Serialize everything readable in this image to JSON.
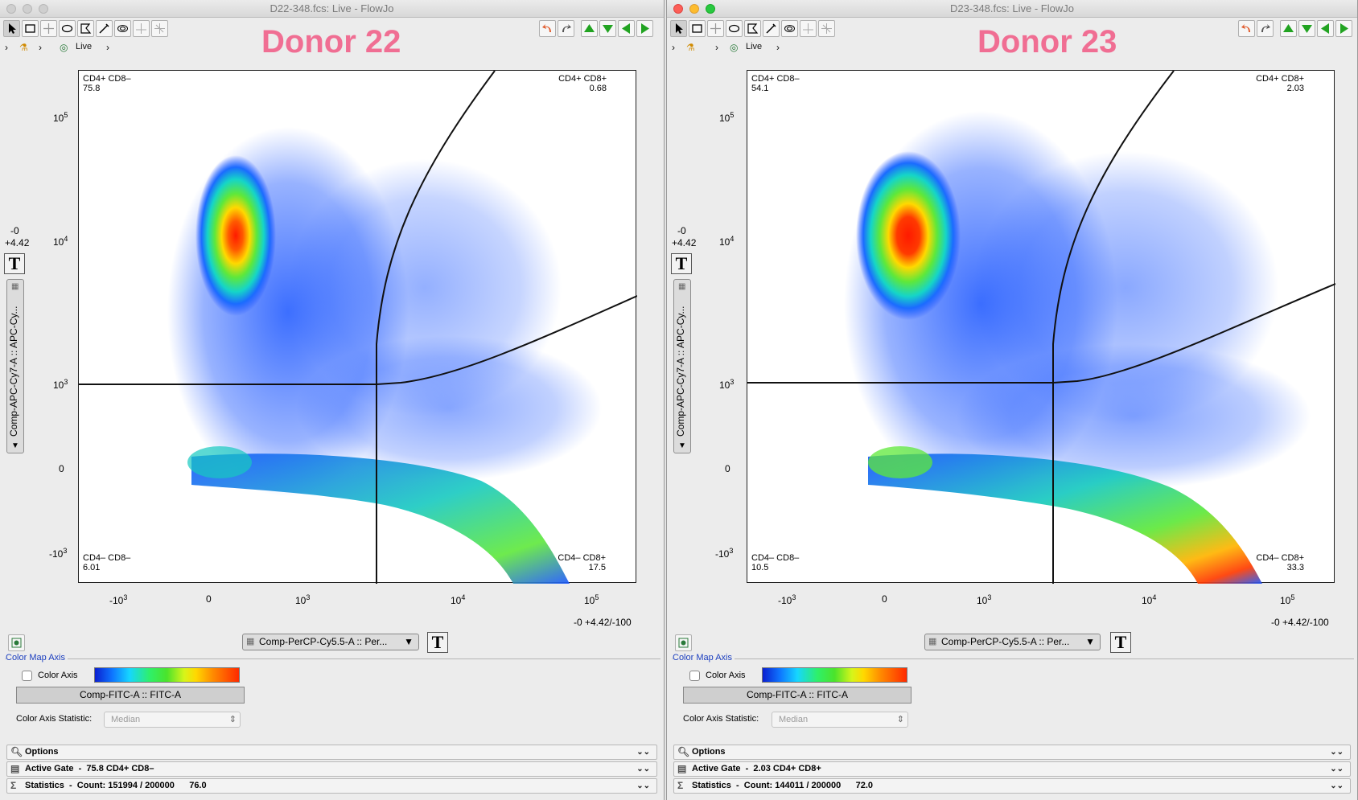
{
  "left": {
    "title": "D22-348.fcs: Live - FlowJo",
    "donor": "Donor 22",
    "breadcrumb": {
      "gate": "Live"
    },
    "quadrants": {
      "ul_name": "CD4+ CD8–",
      "ul_val": "75.8",
      "ur_name": "CD4+ CD8+",
      "ur_val": "0.68",
      "ll_name": "CD4– CD8–",
      "ll_val": "6.01",
      "lr_name": "CD4– CD8+",
      "lr_val": "17.5"
    },
    "yaxis": {
      "label": "Comp-APC-Cy7-A :: APC-Cy...",
      "scale_top": "-0",
      "scale_bot": "+4.42"
    },
    "xaxis": {
      "scale": "-0 +4.42/-100",
      "param": "Comp-PerCP-Cy5.5-A :: Per..."
    },
    "color_map": {
      "title": "Color Map Axis",
      "checkbox_label": "Color Axis",
      "param": "Comp-FITC-A :: FITC-A",
      "statistic_label": "Color Axis Statistic:",
      "statistic": "Median"
    },
    "panels": {
      "options": "Options",
      "active_gate": "Active Gate  -  75.8 CD4+ CD8–",
      "statistics": "Statistics  -  Count: 151994 / 200000      76.0"
    }
  },
  "right": {
    "title": "D23-348.fcs: Live - FlowJo",
    "donor": "Donor 23",
    "breadcrumb": {
      "gate": "Live"
    },
    "quadrants": {
      "ul_name": "CD4+ CD8–",
      "ul_val": "54.1",
      "ur_name": "CD4+ CD8+",
      "ur_val": "2.03",
      "ll_name": "CD4– CD8–",
      "ll_val": "10.5",
      "lr_name": "CD4– CD8+",
      "lr_val": "33.3"
    },
    "yaxis": {
      "label": "Comp-APC-Cy7-A :: APC-Cy...",
      "scale_top": "-0",
      "scale_bot": "+4.42"
    },
    "xaxis": {
      "scale": "-0 +4.42/-100",
      "param": "Comp-PerCP-Cy5.5-A :: Per..."
    },
    "color_map": {
      "title": "Color Map Axis",
      "checkbox_label": "Color Axis",
      "param": "Comp-FITC-A :: FITC-A",
      "statistic_label": "Color Axis Statistic:",
      "statistic": "Median"
    },
    "panels": {
      "options": "Options",
      "active_gate": "Active Gate  -  2.03 CD4+ CD8+",
      "statistics": "Statistics  -  Count: 144011 / 200000      72.0"
    }
  },
  "ticks": {
    "y": [
      "10^5",
      "10^4",
      "10^3",
      "0",
      "-10^3"
    ],
    "x": [
      "-10^3",
      "0",
      "10^3",
      "10^4",
      "10^5"
    ]
  },
  "icons": {
    "tools": [
      "pointer-icon",
      "rectangle-gate-icon",
      "quadrant-gate-icon",
      "ellipse-gate-icon",
      "polygon-gate-icon",
      "freehand-gate-icon",
      "spider-gate-icon",
      "tool-8-icon",
      "tool-9-icon"
    ],
    "nav": [
      "undo-icon",
      "redo-icon",
      "arrow-up-icon",
      "arrow-down-icon",
      "arrow-left-icon",
      "arrow-right-icon"
    ]
  }
}
